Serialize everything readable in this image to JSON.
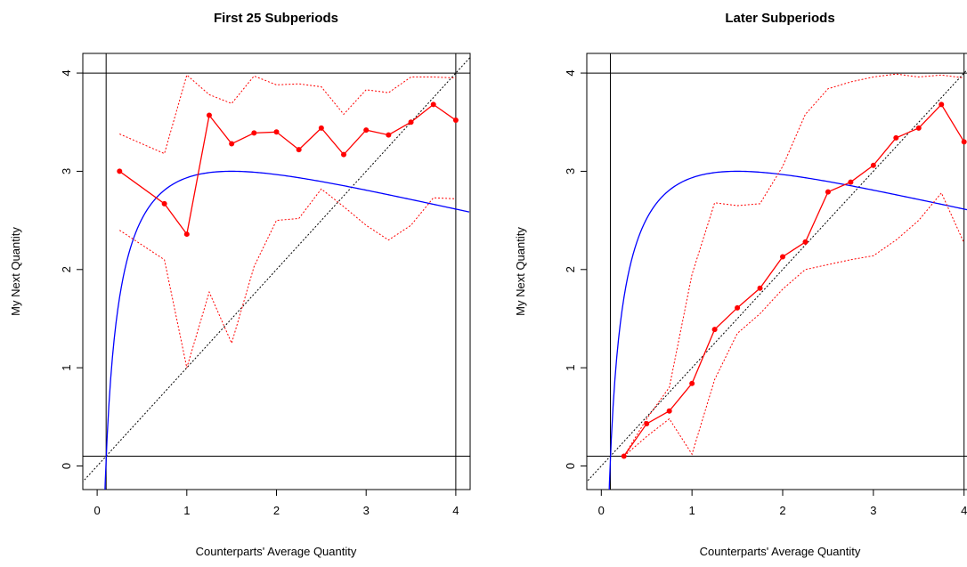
{
  "chart_data": [
    {
      "type": "line",
      "title": "First 25 Subperiods",
      "xlabel": "Counterparts' Average Quantity",
      "ylabel": "My Next Quantity",
      "xlim": [
        -0.16,
        4.16
      ],
      "ylim": [
        -0.24,
        4.2
      ],
      "xticks": [
        0,
        1,
        2,
        3,
        4
      ],
      "yticks": [
        0,
        1,
        2,
        3,
        4
      ],
      "hlines": [
        0.1,
        4
      ],
      "vlines": [
        0.1,
        4
      ],
      "curve": {
        "color": "#0000ff",
        "x_start": 0.07,
        "x_end": 4.16
      },
      "diagonal": {
        "color": "#000000"
      },
      "series": [
        {
          "role": "mean",
          "color": "#ff0000",
          "x": [
            0.25,
            0.75,
            1.0,
            1.25,
            1.5,
            1.75,
            2.0,
            2.25,
            2.5,
            2.75,
            3.0,
            3.25,
            3.5,
            3.75,
            4.0
          ],
          "y": [
            3.0,
            2.67,
            2.36,
            3.57,
            3.28,
            3.39,
            3.4,
            3.22,
            3.44,
            3.17,
            3.42,
            3.37,
            3.5,
            3.68,
            3.52
          ]
        },
        {
          "role": "upper",
          "color": "#ff0000",
          "x": [
            0.25,
            0.75,
            1.0,
            1.25,
            1.5,
            1.75,
            2.0,
            2.25,
            2.5,
            2.75,
            3.0,
            3.25,
            3.5,
            3.75,
            4.0
          ],
          "y": [
            3.38,
            3.18,
            3.98,
            3.78,
            3.69,
            3.97,
            3.88,
            3.89,
            3.86,
            3.58,
            3.83,
            3.8,
            3.96,
            3.96,
            3.95
          ]
        },
        {
          "role": "lower",
          "color": "#ff0000",
          "x": [
            0.25,
            0.75,
            1.0,
            1.25,
            1.5,
            1.75,
            2.0,
            2.25,
            2.5,
            2.75,
            3.0,
            3.25,
            3.5,
            3.75,
            4.0
          ],
          "y": [
            2.4,
            2.1,
            1.0,
            1.77,
            1.25,
            2.03,
            2.5,
            2.52,
            2.82,
            2.64,
            2.45,
            2.3,
            2.45,
            2.73,
            2.72
          ]
        }
      ]
    },
    {
      "type": "line",
      "title": "Later Subperiods",
      "xlabel": "Counterparts' Average Quantity",
      "ylabel": "My Next Quantity",
      "xlim": [
        -0.16,
        4.16
      ],
      "ylim": [
        -0.24,
        4.2
      ],
      "xticks": [
        0,
        1,
        2,
        3,
        4
      ],
      "yticks": [
        0,
        1,
        2,
        3,
        4
      ],
      "hlines": [
        0.1,
        4
      ],
      "vlines": [
        0.1,
        4
      ],
      "curve": {
        "color": "#0000ff",
        "x_start": 0.07,
        "x_end": 4.16
      },
      "diagonal": {
        "color": "#000000"
      },
      "series": [
        {
          "role": "mean",
          "color": "#ff0000",
          "x": [
            0.25,
            0.5,
            0.75,
            1.0,
            1.25,
            1.5,
            1.75,
            2.0,
            2.25,
            2.5,
            2.75,
            3.0,
            3.25,
            3.5,
            3.75,
            4.0
          ],
          "y": [
            0.1,
            0.43,
            0.56,
            0.84,
            1.39,
            1.61,
            1.81,
            2.13,
            2.28,
            2.79,
            2.89,
            3.06,
            3.34,
            3.44,
            3.68,
            3.3
          ]
        },
        {
          "role": "upper",
          "color": "#ff0000",
          "x": [
            0.25,
            0.5,
            0.75,
            1.0,
            1.25,
            1.5,
            1.75,
            2.0,
            2.25,
            2.5,
            2.75,
            3.0,
            3.25,
            3.5,
            3.75,
            4.0
          ],
          "y": [
            0.1,
            0.48,
            0.8,
            1.95,
            2.68,
            2.65,
            2.67,
            3.05,
            3.58,
            3.84,
            3.91,
            3.96,
            3.99,
            3.96,
            3.98,
            3.95
          ]
        },
        {
          "role": "lower",
          "color": "#ff0000",
          "x": [
            0.25,
            0.5,
            0.75,
            1.0,
            1.25,
            1.5,
            1.75,
            2.0,
            2.25,
            2.5,
            2.75,
            3.0,
            3.25,
            3.5,
            3.75,
            4.0
          ],
          "y": [
            0.1,
            0.3,
            0.48,
            0.12,
            0.88,
            1.35,
            1.55,
            1.8,
            2.0,
            2.05,
            2.1,
            2.14,
            2.3,
            2.5,
            2.78,
            2.27
          ]
        }
      ]
    }
  ]
}
